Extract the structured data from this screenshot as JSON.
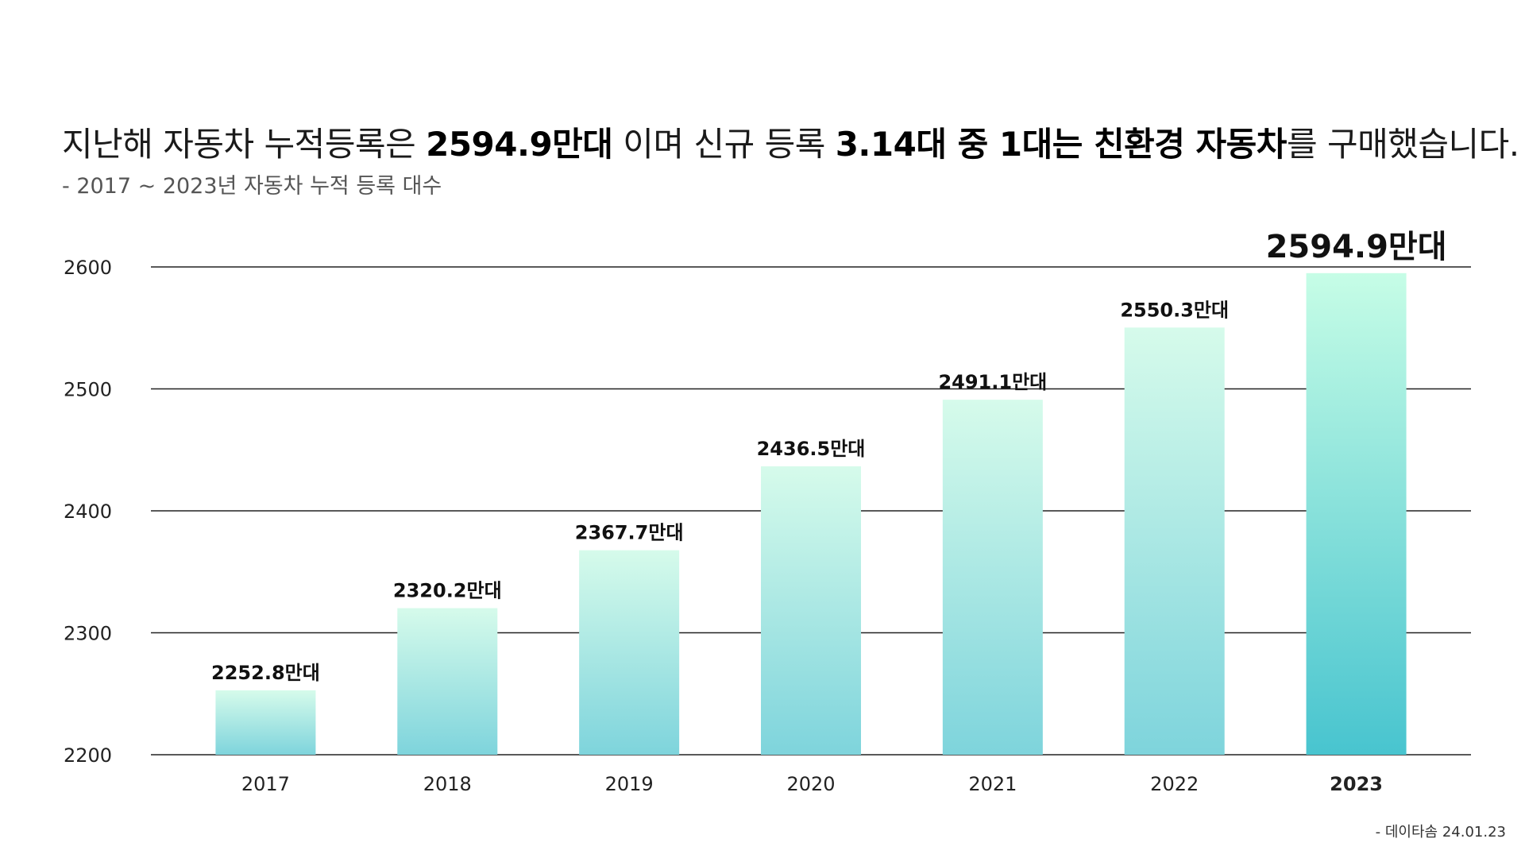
{
  "headline": {
    "part1": "지난해 자동차 누적등록은 ",
    "bold1": "2594.9만대",
    "part2": " 이며 신규 등록 ",
    "bold2": "3.14대 중 1대는 친환경 자동차",
    "part3": "를 구매했습니다."
  },
  "subtitle": "- 2017 ~ 2023년 자동차 누적 등록 대수",
  "source": "- 데이타솜 24.01.23",
  "colors": {
    "bar_top": "#d6fbeb",
    "bar_bottom": "#7ed4dc",
    "highlight_top": "#c6fde6",
    "highlight_bottom": "#48c4cf",
    "gridline": "#222222"
  },
  "chart_data": {
    "type": "bar",
    "categories": [
      "2017",
      "2018",
      "2019",
      "2020",
      "2021",
      "2022",
      "2023"
    ],
    "values": [
      2252.8,
      2320.2,
      2367.7,
      2436.5,
      2491.1,
      2550.3,
      2594.9
    ],
    "data_labels": [
      "2252.8만대",
      "2320.2만대",
      "2367.7만대",
      "2436.5만대",
      "2491.1만대",
      "2550.3만대",
      "2594.9만대"
    ],
    "highlight_index": 6,
    "yticks": [
      "2200",
      "2300",
      "2400",
      "2500",
      "2600"
    ],
    "ylim": [
      2200,
      2600
    ],
    "grid": true
  }
}
